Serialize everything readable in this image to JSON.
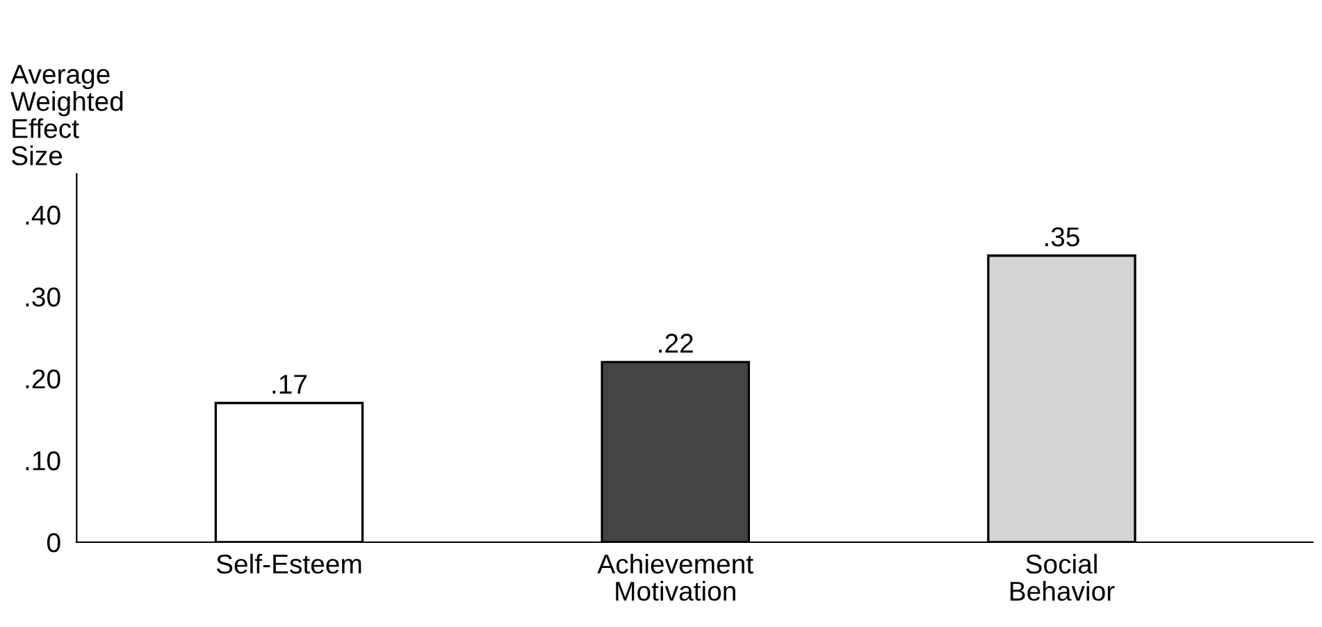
{
  "chart_data": {
    "type": "bar",
    "ylabel": "Average\nWeighted\nEffect\nSize",
    "categories": [
      "Self-Esteem",
      "Achievement\nMotivation",
      "Social\nBehavior"
    ],
    "values": [
      0.17,
      0.22,
      0.35
    ],
    "colors": [
      "#ffffff",
      "#444444",
      "#d4d4d4"
    ],
    "value_labels": [
      ".17",
      ".22",
      ".35"
    ],
    "ylim": [
      0,
      0.45
    ],
    "yticks": [
      0,
      {
        "value": 0.1,
        "label": ".10"
      },
      {
        "value": 0.2,
        "label": ".20"
      },
      {
        "value": 0.3,
        "label": ".30"
      },
      {
        "value": 0.4,
        "label": ".40"
      }
    ],
    "grid": false,
    "legend": false
  }
}
